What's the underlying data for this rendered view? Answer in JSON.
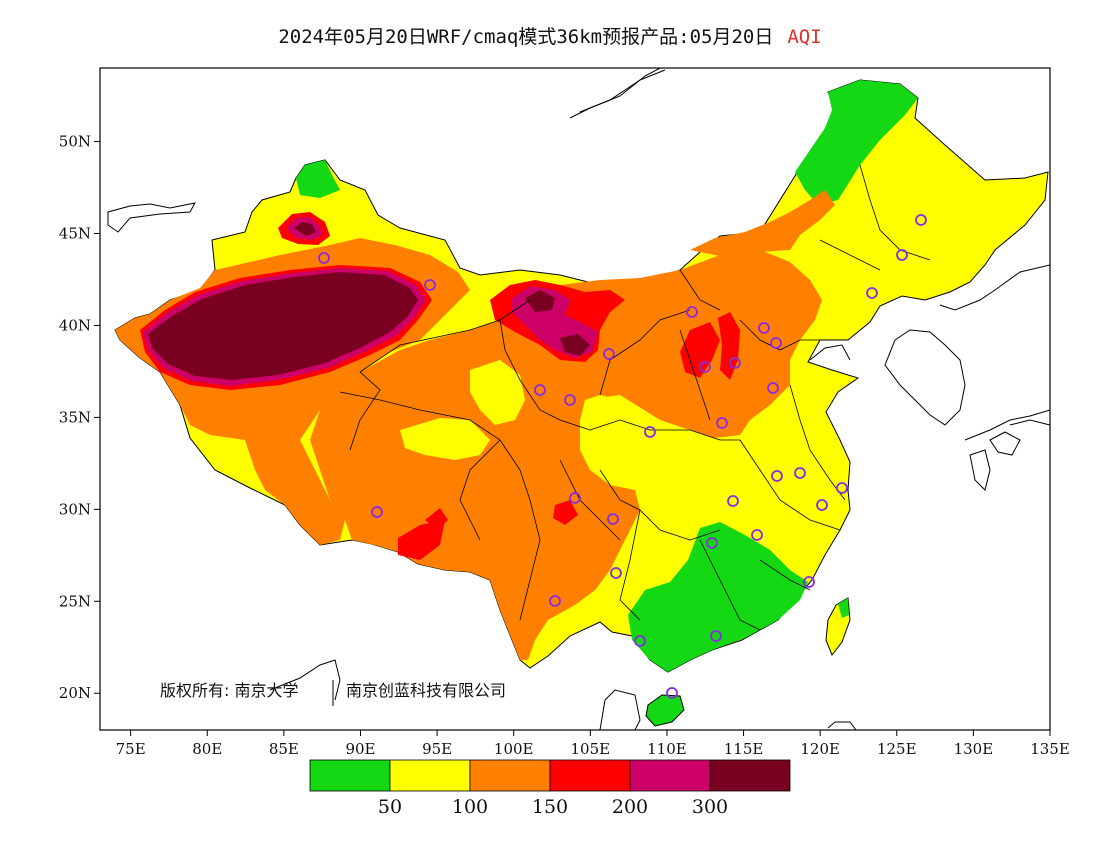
{
  "title": {
    "main": "2024年05月20日WRF/cmaq模式36km预报产品:05月20日",
    "variable": "AQI"
  },
  "axes": {
    "x_ticks": [
      "75E",
      "80E",
      "85E",
      "90E",
      "95E",
      "100E",
      "105E",
      "110E",
      "115E",
      "120E",
      "125E",
      "130E",
      "135E"
    ],
    "y_ticks": [
      "50N",
      "45N",
      "40N",
      "35N",
      "30N",
      "25N",
      "20N"
    ],
    "x_range": [
      73,
      135
    ],
    "y_range": [
      18,
      54
    ]
  },
  "copyright": {
    "part1": "版权所有: 南京大学",
    "part2": "南京创蓝科技有限公司"
  },
  "legend": {
    "colors": [
      "#14d814",
      "#ffff00",
      "#ff8000",
      "#ff0000",
      "#cc0066",
      "#7a0022"
    ],
    "labels": [
      "50",
      "100",
      "150",
      "200",
      "300"
    ]
  },
  "colors": {
    "station_marker": "#8a2be2",
    "border": "#000000"
  }
}
